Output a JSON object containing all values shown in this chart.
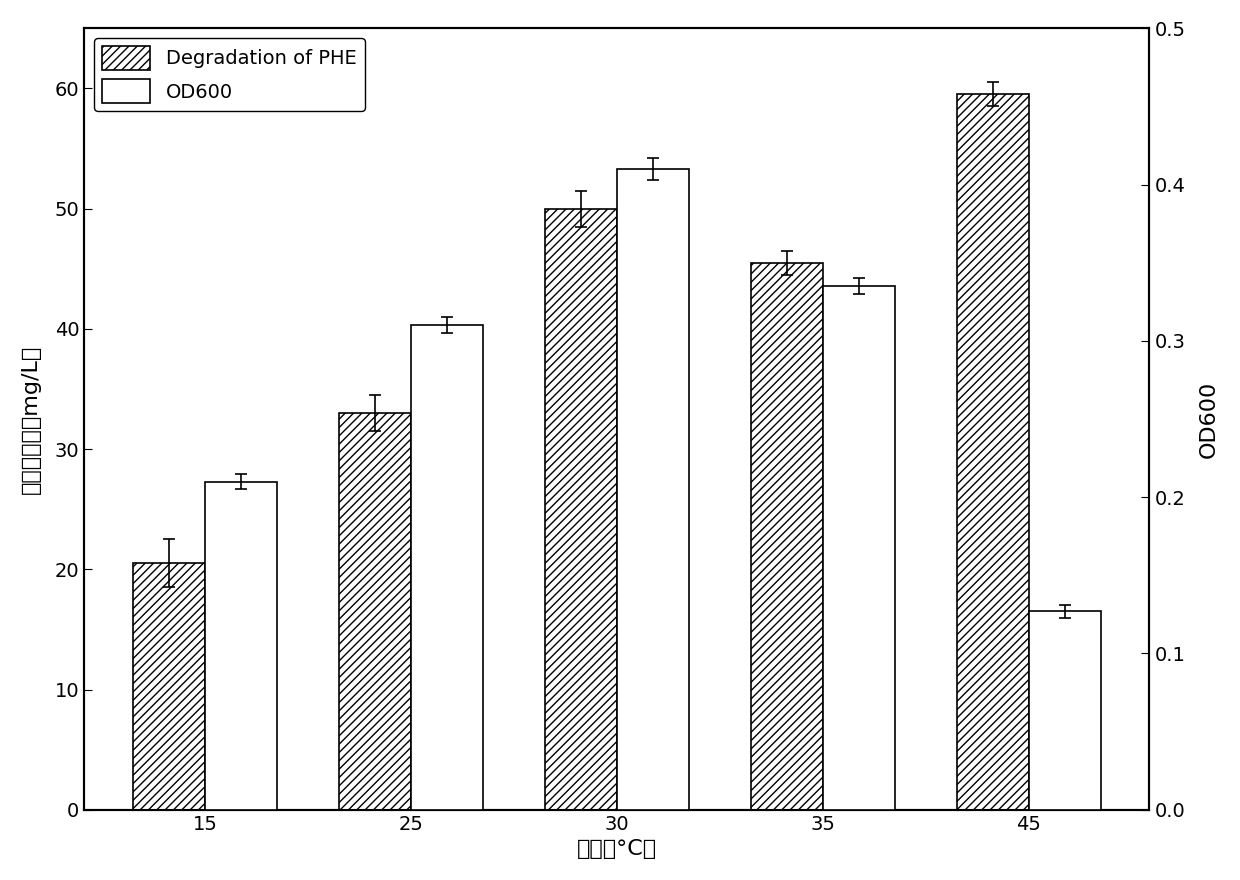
{
  "temperatures": [
    15,
    25,
    30,
    35,
    45
  ],
  "phe_values": [
    20.5,
    33.0,
    50.0,
    45.5,
    59.5
  ],
  "phe_errors": [
    2.0,
    1.5,
    1.5,
    1.0,
    1.0
  ],
  "od600_values": [
    0.21,
    0.31,
    0.41,
    0.335,
    0.127
  ],
  "od600_errors": [
    0.005,
    0.005,
    0.007,
    0.005,
    0.004
  ],
  "xlabel": "温度（°C）",
  "ylabel_left_parts": [
    "菲的降解量（",
    "mg/L）"
  ],
  "ylabel_right": "OD600",
  "ylim_left": [
    0,
    65
  ],
  "ylim_right": [
    0,
    0.5
  ],
  "yticks_left": [
    0,
    10,
    20,
    30,
    40,
    50,
    60
  ],
  "yticks_right": [
    0.0,
    0.1,
    0.2,
    0.3,
    0.4,
    0.5
  ],
  "legend_phe": "Degradation of PHE",
  "legend_od": "OD600",
  "bar_width": 0.35,
  "hatch_pattern": "////",
  "bar_color_phe": "#ffffff",
  "bar_color_od": "#ffffff",
  "edge_color": "#000000",
  "background_color": "#ffffff",
  "label_fontsize": 16,
  "tick_fontsize": 14,
  "legend_fontsize": 14
}
